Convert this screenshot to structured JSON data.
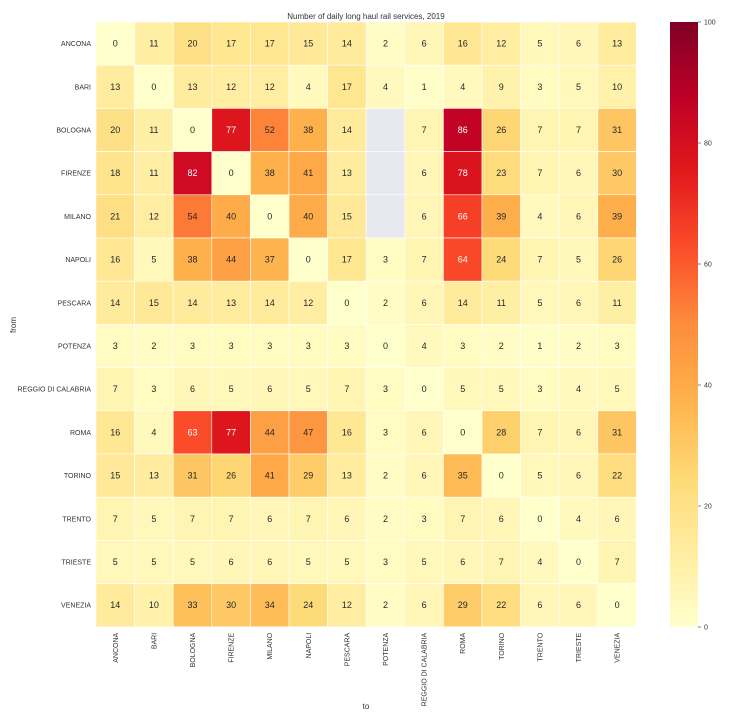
{
  "chart_data": {
    "type": "heatmap",
    "title": "Number of daily long haul rail services, 2019",
    "xlabel": "to",
    "ylabel": "from",
    "rows": [
      "ANCONA",
      "BARI",
      "BOLOGNA",
      "FIRENZE",
      "MILANO",
      "NAPOLI",
      "PESCARA",
      "POTENZA",
      "REGGIO DI CALABRIA",
      "ROMA",
      "TORINO",
      "TRENTO",
      "TRIESTE",
      "VENEZIA"
    ],
    "columns": [
      "ANCONA",
      "BARI",
      "BOLOGNA",
      "FIRENZE",
      "MILANO",
      "NAPOLI",
      "PESCARA",
      "POTENZA",
      "REGGIO DI CALABRIA",
      "ROMA",
      "TORINO",
      "TRENTO",
      "TRIESTE",
      "VENEZIA"
    ],
    "values": [
      [
        0,
        11,
        20,
        17,
        17,
        15,
        14,
        2,
        6,
        16,
        12,
        5,
        6,
        13
      ],
      [
        13,
        0,
        13,
        12,
        12,
        4,
        17,
        4,
        1,
        4,
        9,
        3,
        5,
        10
      ],
      [
        20,
        11,
        0,
        77,
        52,
        38,
        14,
        null,
        7,
        86,
        26,
        7,
        7,
        31
      ],
      [
        18,
        11,
        82,
        0,
        38,
        41,
        13,
        null,
        6,
        78,
        23,
        7,
        6,
        30
      ],
      [
        21,
        12,
        54,
        40,
        0,
        40,
        15,
        null,
        6,
        66,
        39,
        4,
        6,
        39
      ],
      [
        16,
        5,
        38,
        44,
        37,
        0,
        17,
        3,
        7,
        64,
        24,
        7,
        5,
        26
      ],
      [
        14,
        15,
        14,
        13,
        14,
        12,
        0,
        2,
        6,
        14,
        11,
        5,
        6,
        11
      ],
      [
        3,
        2,
        3,
        3,
        3,
        3,
        3,
        0,
        4,
        3,
        2,
        1,
        2,
        3
      ],
      [
        7,
        3,
        6,
        5,
        6,
        5,
        7,
        3,
        0,
        5,
        5,
        3,
        4,
        5
      ],
      [
        16,
        4,
        63,
        77,
        44,
        47,
        16,
        3,
        6,
        0,
        28,
        7,
        6,
        31
      ],
      [
        15,
        13,
        31,
        26,
        41,
        29,
        13,
        2,
        6,
        35,
        0,
        5,
        6,
        22
      ],
      [
        7,
        5,
        7,
        7,
        6,
        7,
        6,
        2,
        3,
        7,
        6,
        0,
        4,
        6
      ],
      [
        5,
        5,
        5,
        6,
        6,
        5,
        5,
        3,
        5,
        6,
        7,
        4,
        0,
        7
      ],
      [
        14,
        10,
        33,
        30,
        34,
        24,
        12,
        2,
        6,
        29,
        22,
        6,
        6,
        0
      ]
    ],
    "colorbar": {
      "min": 0,
      "max": 100,
      "ticks": [
        0,
        20,
        40,
        60,
        80,
        100
      ],
      "colormap": "YlOrRd"
    },
    "missing_color": "#e8e8f0",
    "grid": false
  }
}
